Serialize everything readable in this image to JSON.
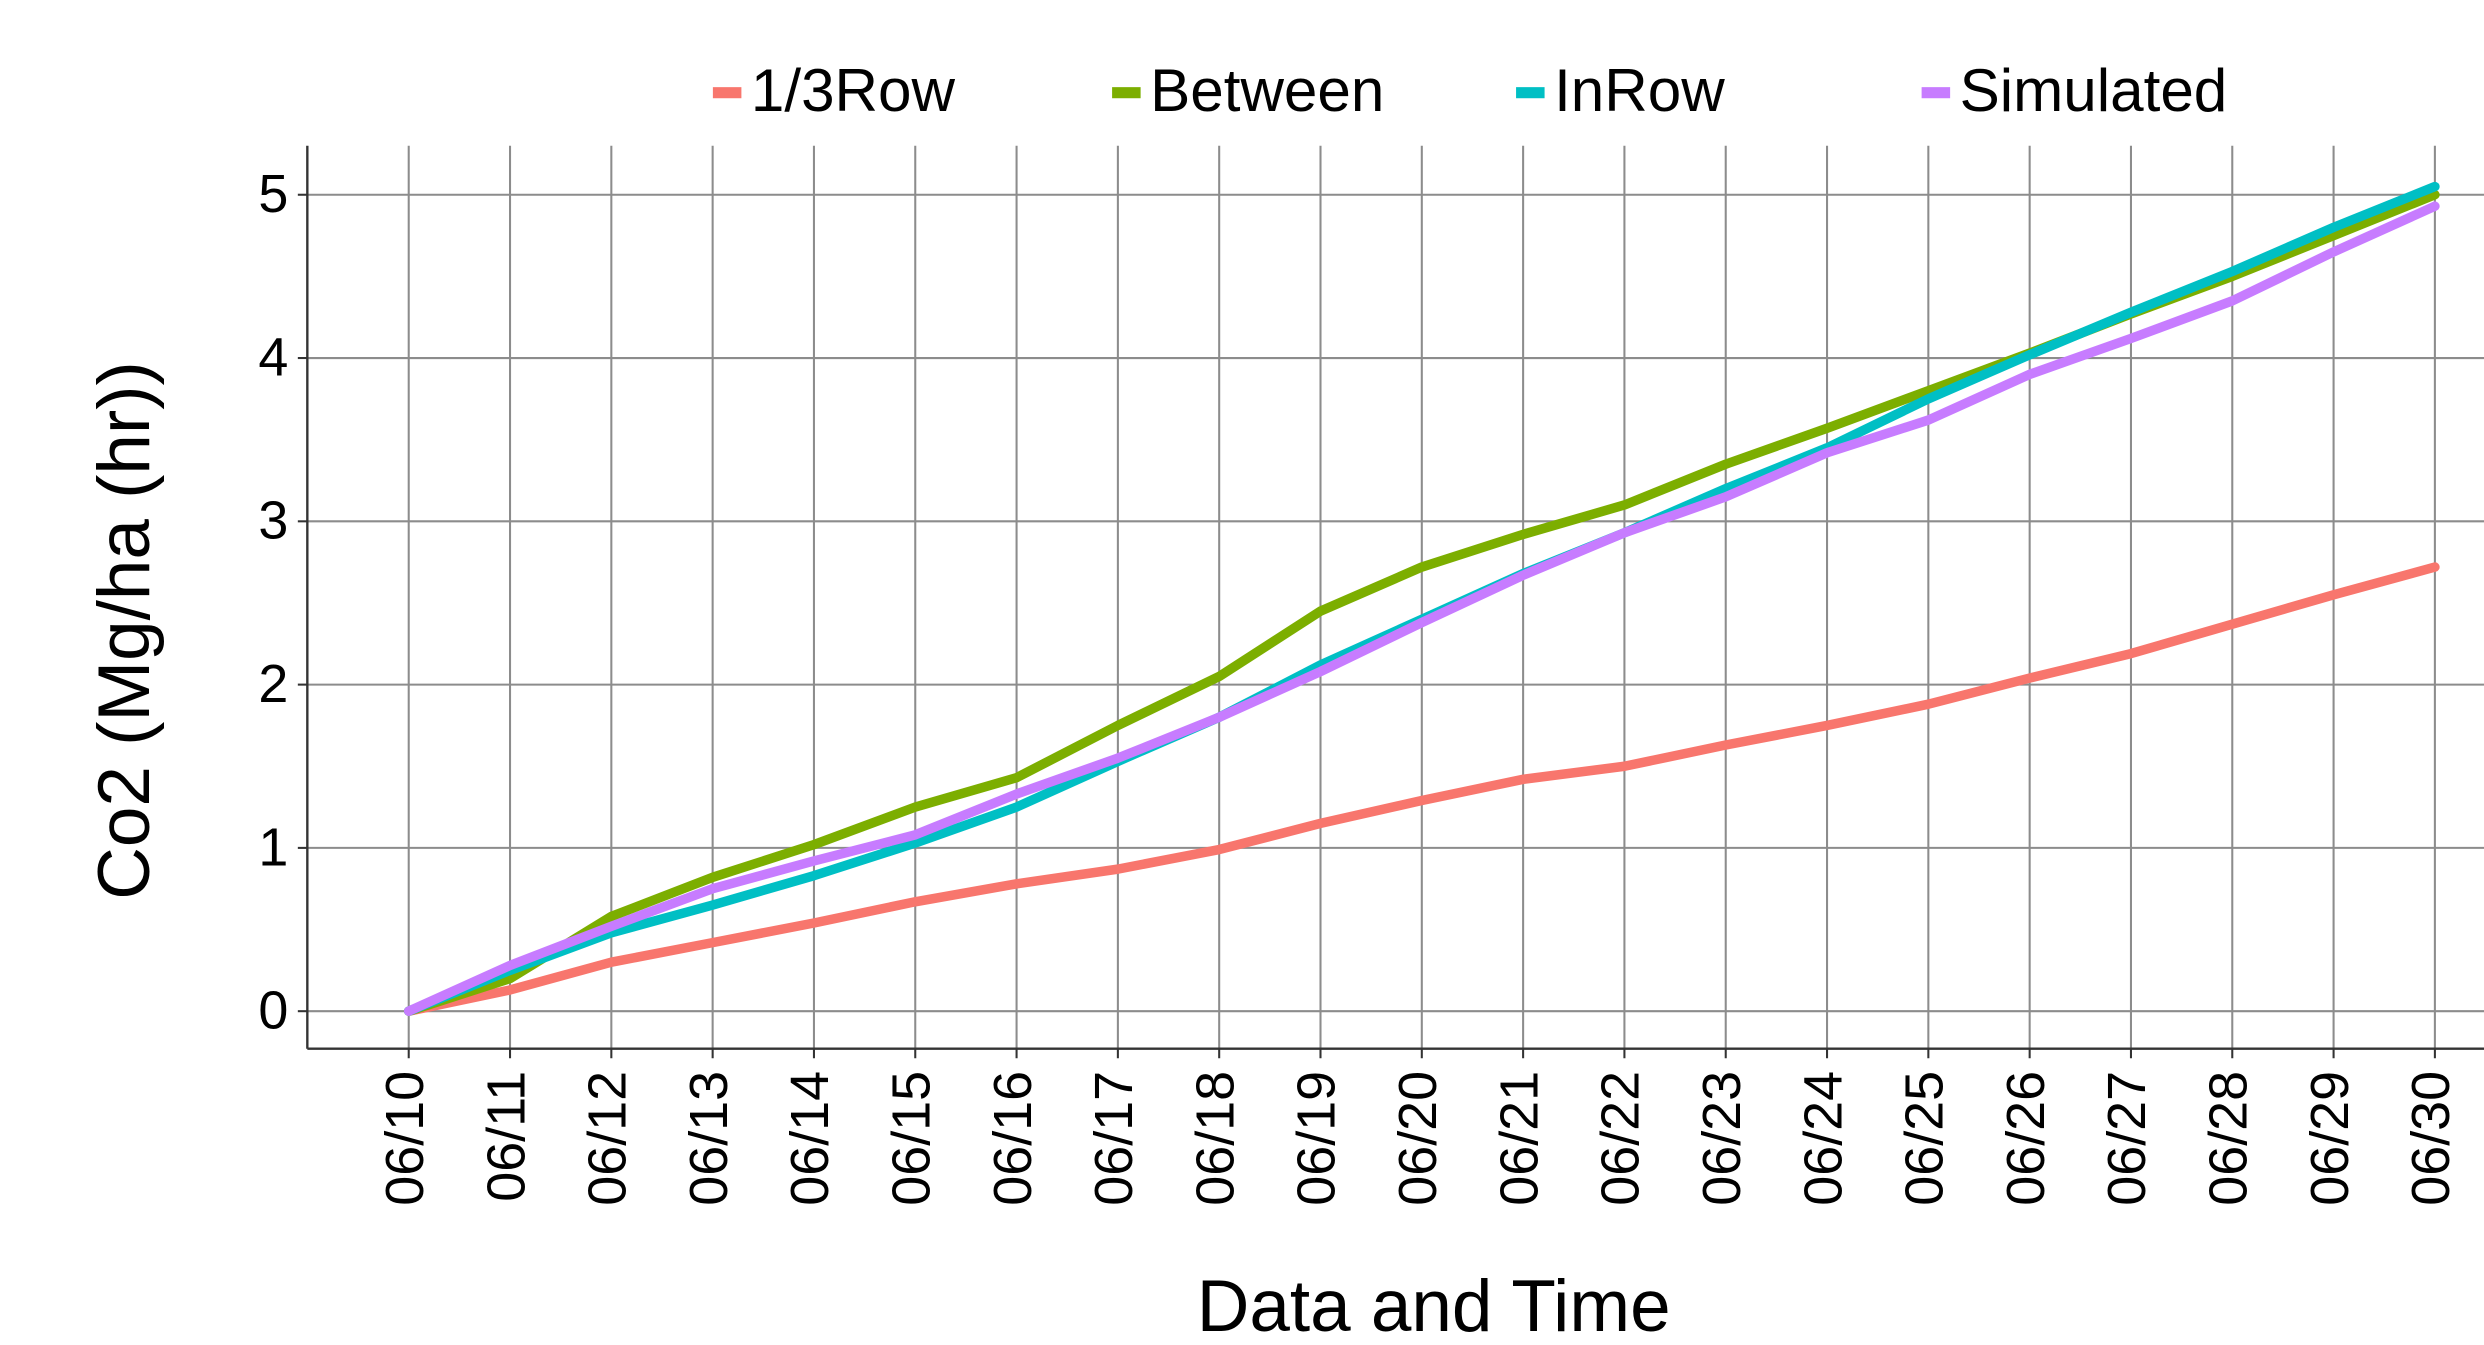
{
  "chart_data": {
    "type": "line",
    "x_label": "Data and Time",
    "y_label": "Co2 (Mg/ha (hr))",
    "x": [
      "06/10",
      "06/11",
      "06/12",
      "06/13",
      "06/14",
      "06/15",
      "06/16",
      "06/17",
      "06/18",
      "06/19",
      "06/20",
      "06/21",
      "06/22",
      "06/23",
      "06/24",
      "06/25",
      "06/26",
      "06/27",
      "06/28",
      "06/29",
      "06/30"
    ],
    "series": [
      {
        "name": "1/3Row",
        "color": "#f8766d",
        "values": [
          0,
          0.13,
          0.3,
          0.42,
          0.54,
          0.67,
          0.78,
          0.87,
          0.99,
          1.15,
          1.29,
          1.42,
          1.5,
          1.63,
          1.75,
          1.88,
          2.04,
          2.19,
          2.37,
          2.55,
          2.72
        ]
      },
      {
        "name": "Between",
        "color": "#7cae00",
        "values": [
          0,
          0.2,
          0.58,
          0.82,
          1.02,
          1.25,
          1.43,
          1.75,
          2.05,
          2.45,
          2.72,
          2.92,
          3.1,
          3.35,
          3.57,
          3.8,
          4.03,
          4.27,
          4.5,
          4.75,
          5.0
        ]
      },
      {
        "name": "InRow",
        "color": "#00bfc4",
        "values": [
          0,
          0.25,
          0.48,
          0.65,
          0.83,
          1.03,
          1.25,
          1.53,
          1.8,
          2.12,
          2.4,
          2.68,
          2.93,
          3.2,
          3.45,
          3.75,
          4.02,
          4.28,
          4.53,
          4.8,
          5.05
        ]
      },
      {
        "name": "Simulated",
        "color": "#c77cff",
        "values": [
          0,
          0.28,
          0.52,
          0.75,
          0.92,
          1.08,
          1.33,
          1.55,
          1.8,
          2.08,
          2.38,
          2.67,
          2.93,
          3.15,
          3.42,
          3.62,
          3.9,
          4.12,
          4.35,
          4.65,
          4.93
        ]
      }
    ],
    "ylim": [
      -0.23,
      5.3
    ],
    "yticks": [
      0,
      1,
      2,
      3,
      4,
      5
    ],
    "grid": true,
    "legend": "top"
  }
}
